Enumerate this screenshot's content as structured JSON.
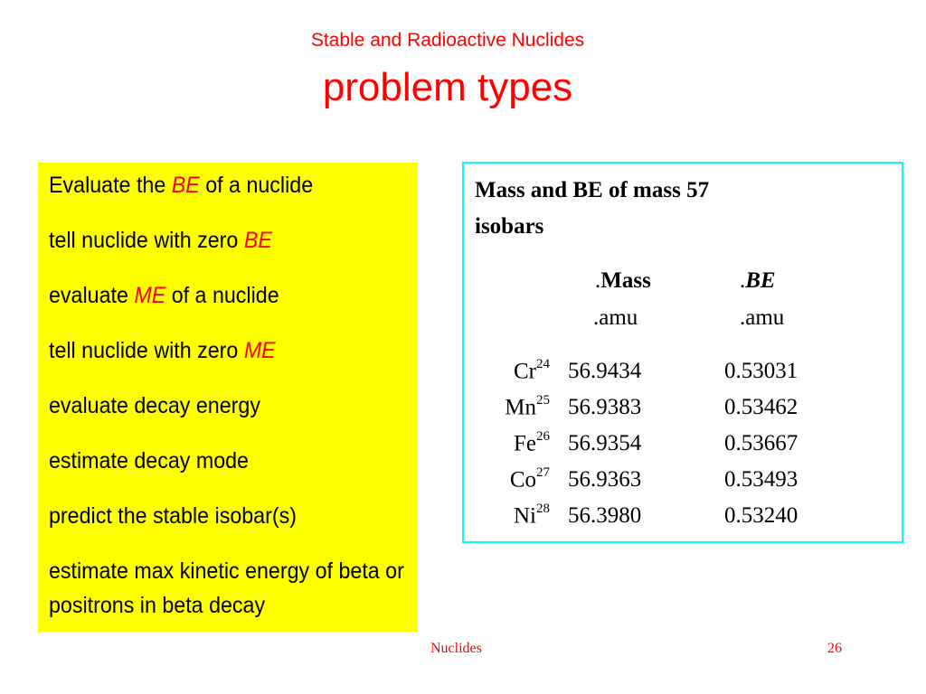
{
  "header": {
    "subtitle": "Stable and Radioactive Nuclides",
    "title": "problem types"
  },
  "problems": [
    {
      "pre": "Evaluate the ",
      "em": "BE",
      "post": " of a nuclide"
    },
    {
      "pre": "tell nuclide with zero ",
      "em": "BE",
      "post": ""
    },
    {
      "pre": "evaluate ",
      "em": "ME",
      "post": " of a nuclide"
    },
    {
      "pre": "tell nuclide with zero ",
      "em": "ME",
      "post": ""
    },
    {
      "pre": "evaluate decay energy",
      "em": "",
      "post": ""
    },
    {
      "pre": "estimate decay mode",
      "em": "",
      "post": ""
    },
    {
      "pre": "predict the stable isobar(s)",
      "em": "",
      "post": ""
    },
    {
      "pre": "estimate max kinetic energy of beta or positrons in beta decay",
      "em": "",
      "post": ""
    }
  ],
  "table": {
    "title_line1": "Mass and BE of  mass 57",
    "title_line2": "isobars",
    "col_mass_dot": ".",
    "col_mass": "Mass",
    "col_be_dot": ".",
    "col_be": "BE",
    "unit_mass": ".amu",
    "unit_be": ".amu",
    "rows": [
      {
        "symbol": "Cr",
        "z": "24",
        "mass": "56.9434",
        "be": "0.53031"
      },
      {
        "symbol": "Mn",
        "z": "25",
        "mass": "56.9383",
        "be": "0.53462"
      },
      {
        "symbol": "Fe",
        "z": "26",
        "mass": "56.9354",
        "be": "0.53667"
      },
      {
        "symbol": "Co",
        "z": "27",
        "mass": "56.9363",
        "be": "0.53493"
      },
      {
        "symbol": "Ni",
        "z": "28",
        "mass": "56.3980",
        "be": "0.53240"
      }
    ]
  },
  "footer": {
    "label": "Nuclides",
    "page": "26"
  }
}
